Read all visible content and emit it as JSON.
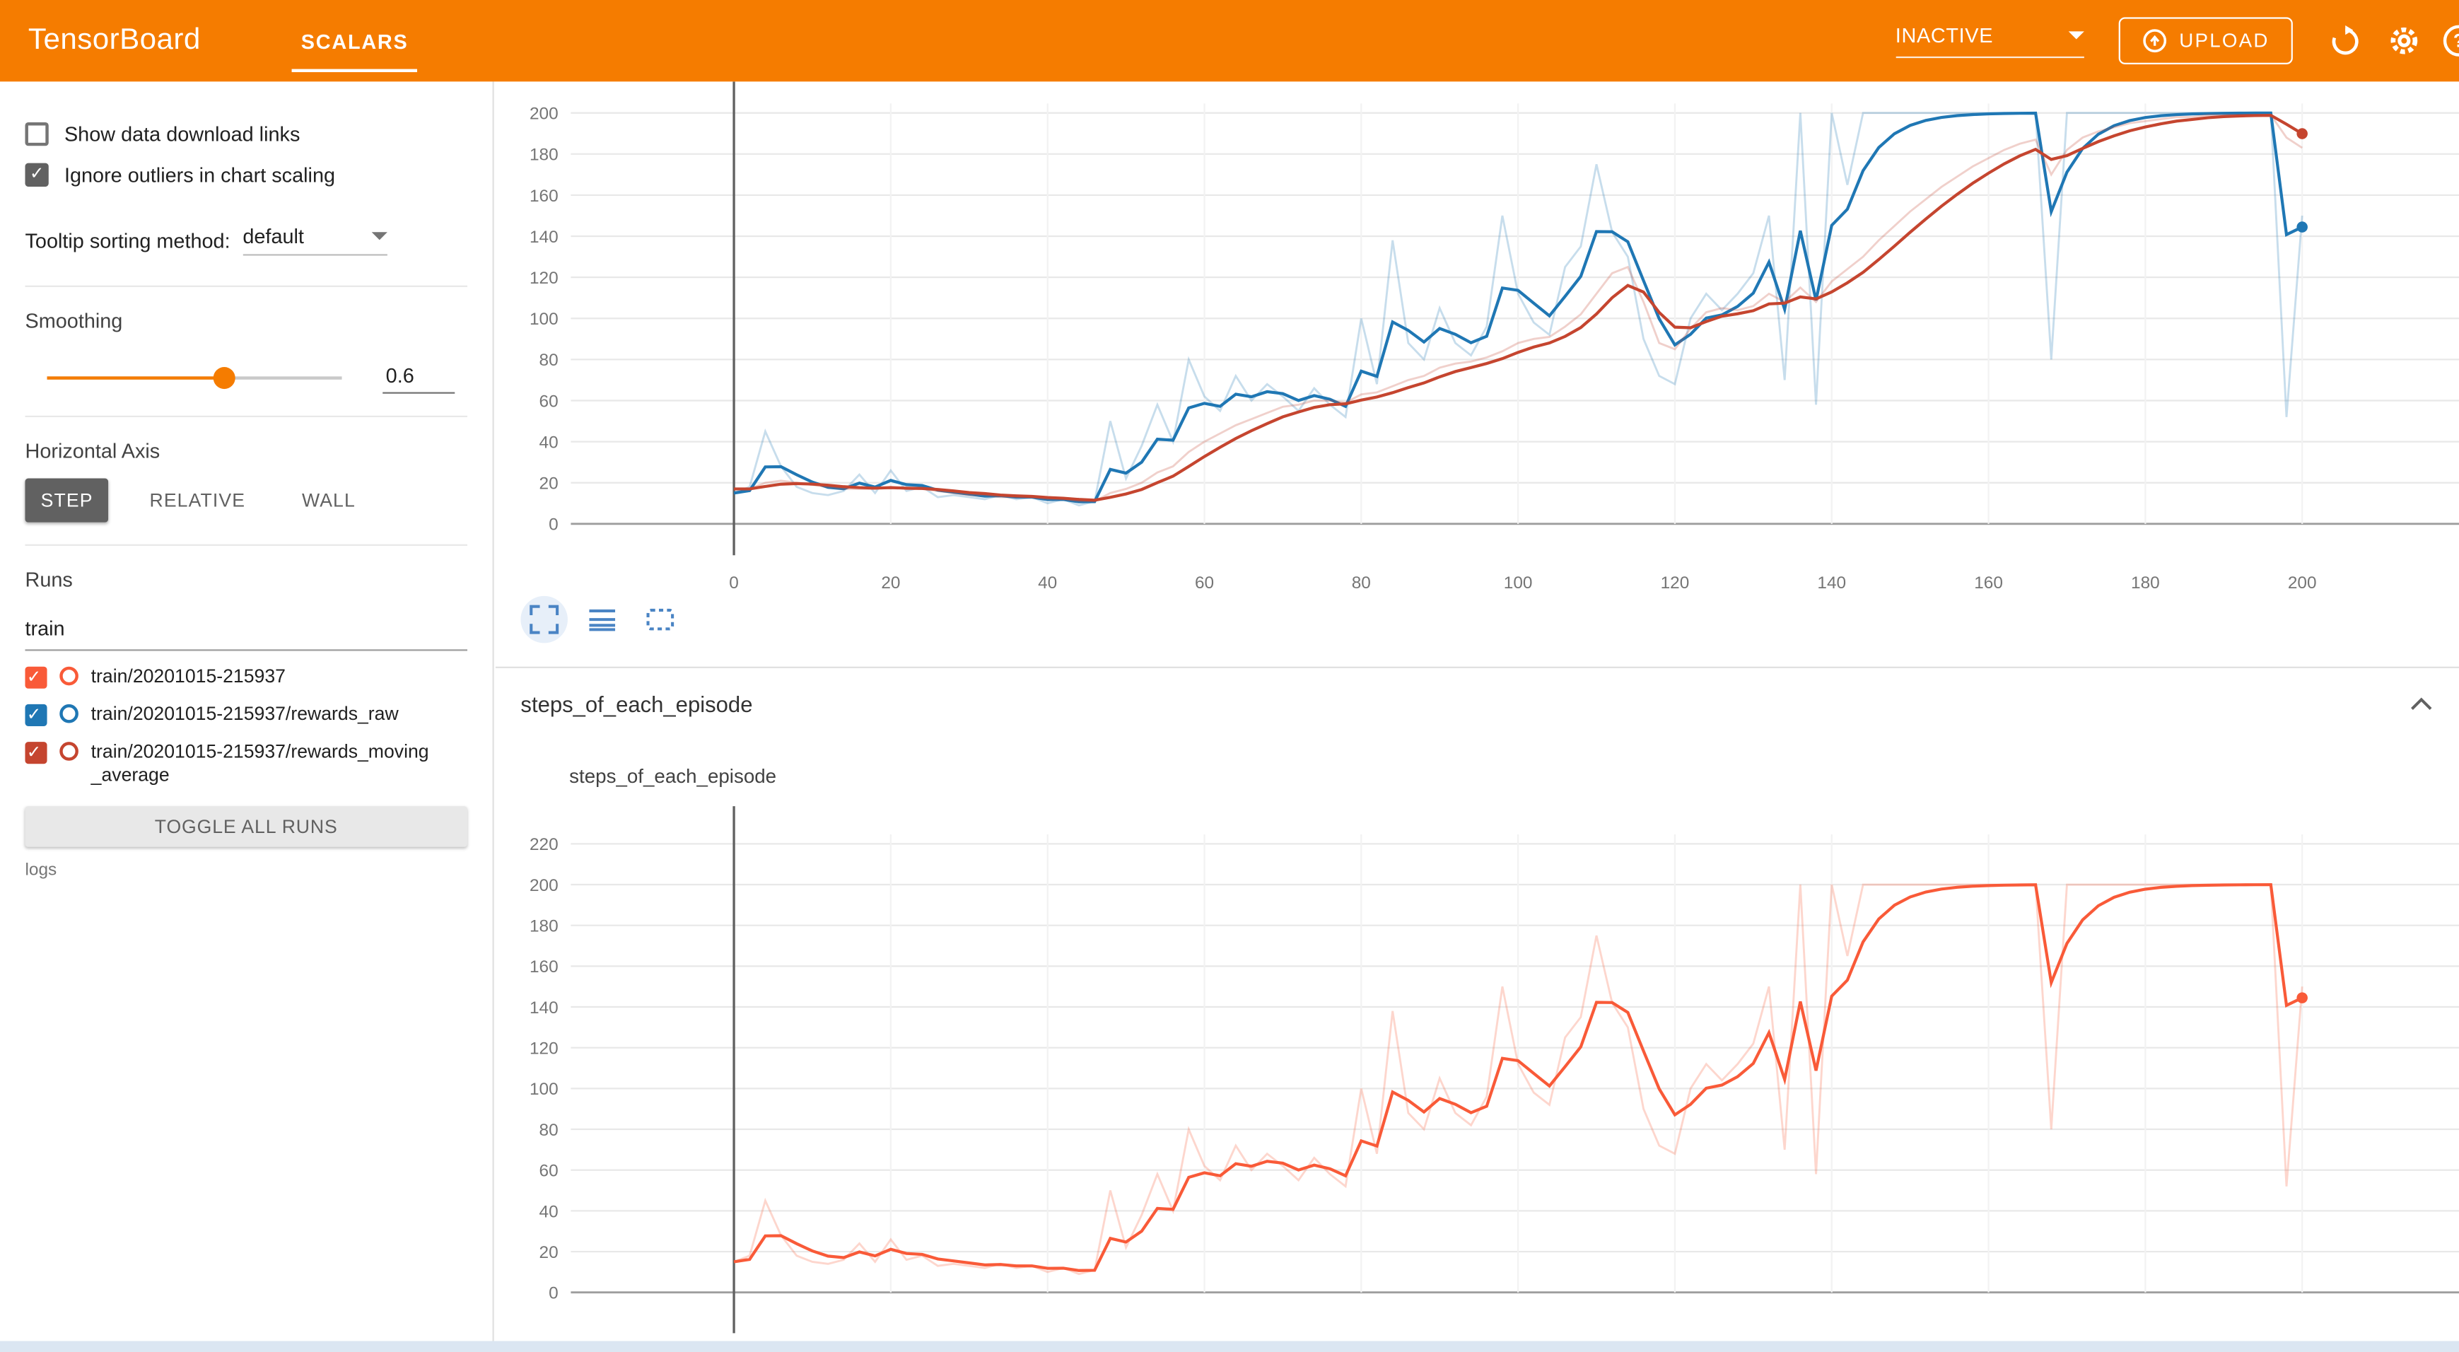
{
  "header": {
    "brand": "TensorBoard",
    "tabs": [
      {
        "label": "SCALARS",
        "active": true
      }
    ],
    "status_dropdown": {
      "value": "INACTIVE"
    },
    "upload_button": {
      "label": "UPLOAD"
    },
    "accent_color": "#f57c00"
  },
  "sidebar": {
    "checkboxes": [
      {
        "label": "Show data download links",
        "checked": false
      },
      {
        "label": "Ignore outliers in chart scaling",
        "checked": true
      }
    ],
    "tooltip_sorting": {
      "label": "Tooltip sorting method:",
      "value": "default"
    },
    "smoothing": {
      "label": "Smoothing",
      "value": "0.6"
    },
    "horizontal_axis": {
      "label": "Horizontal Axis",
      "options": [
        "STEP",
        "RELATIVE",
        "WALL"
      ],
      "selected": "STEP"
    },
    "runs": {
      "label": "Runs",
      "filter_value": "train",
      "items": [
        {
          "label": "train/20201015-215937",
          "color": "#f95a38",
          "checked": true
        },
        {
          "label": "train/20201015-215937/rewards_raw",
          "color": "#1f77b4",
          "checked": true
        },
        {
          "label": "train/20201015-215937/rewards_moving_average",
          "color": "#c5452f",
          "checked": true
        }
      ],
      "toggle_all_label": "TOGGLE ALL RUNS",
      "logdir": "logs"
    }
  },
  "main": {
    "section": {
      "title": "steps_of_each_episode"
    },
    "card": {
      "title": "steps_of_each_episode"
    }
  },
  "chart_data": [
    {
      "type": "line",
      "note": "top chart, card header cropped out of view",
      "smoothing": 0.6,
      "xlim": [
        0,
        200
      ],
      "ylim_visible": [
        0,
        200
      ],
      "xticks": [
        0,
        20,
        40,
        60,
        80,
        100,
        120,
        140,
        160,
        180,
        200
      ],
      "yticks": [
        0,
        20,
        40,
        60,
        80,
        100,
        120,
        140,
        160,
        180,
        200
      ],
      "grid": true,
      "series": [
        {
          "name": "train/20201015-215937/rewards_raw",
          "color": "#1f77b4",
          "x_step": 2,
          "values": [
            15,
            18,
            45,
            28,
            18,
            15,
            14,
            16,
            24,
            15,
            26,
            16,
            18,
            13,
            14,
            13,
            12,
            14,
            12,
            13,
            10,
            12,
            9,
            11,
            50,
            22,
            38,
            58,
            40,
            80,
            62,
            55,
            72,
            60,
            68,
            62,
            55,
            66,
            58,
            52,
            100,
            68,
            138,
            88,
            80,
            105,
            88,
            82,
            96,
            150,
            112,
            98,
            92,
            125,
            135,
            175,
            142,
            130,
            90,
            72,
            68,
            100,
            112,
            104,
            112,
            122,
            150,
            70,
            200,
            58,
            200,
            165,
            200,
            200,
            200,
            200,
            200,
            200,
            200,
            200,
            200,
            200,
            200,
            200,
            80,
            200,
            200,
            200,
            200,
            200,
            200,
            200,
            200,
            200,
            200,
            200,
            200,
            200,
            200,
            52,
            150
          ]
        },
        {
          "name": "train/20201015-215937/rewards_moving_average",
          "color": "#c5452f",
          "x_step": 2,
          "values": [
            17,
            17,
            20,
            21,
            20,
            19,
            18,
            17,
            17,
            17,
            18,
            17,
            17,
            16,
            15,
            14,
            14,
            13,
            13,
            13,
            12,
            12,
            11,
            11,
            15,
            17,
            20,
            25,
            28,
            35,
            40,
            44,
            48,
            51,
            54,
            57,
            58,
            60,
            60,
            59,
            63,
            64,
            67,
            70,
            72,
            76,
            78,
            79,
            81,
            84,
            88,
            90,
            91,
            96,
            102,
            112,
            122,
            125,
            108,
            88,
            85,
            95,
            103,
            105,
            104,
            106,
            112,
            108,
            115,
            108,
            118,
            124,
            130,
            138,
            145,
            152,
            158,
            164,
            169,
            174,
            178,
            182,
            185,
            187,
            170,
            182,
            188,
            191,
            193,
            195,
            196,
            197,
            198,
            198,
            199,
            199,
            199,
            199,
            199,
            188,
            183
          ]
        }
      ]
    },
    {
      "type": "line",
      "title": "steps_of_each_episode",
      "smoothing": 0.6,
      "xlim": [
        0,
        200
      ],
      "ylim_visible": [
        0,
        220
      ],
      "xticks": [
        0,
        20,
        40,
        60,
        80,
        100,
        120,
        140,
        160,
        180,
        200
      ],
      "yticks": [
        0,
        20,
        40,
        60,
        80,
        100,
        120,
        140,
        160,
        180,
        200,
        220
      ],
      "grid": true,
      "x_axis_labels_visible": false,
      "series": [
        {
          "name": "train/20201015-215937",
          "color": "#f95a38",
          "x_step": 2,
          "values": [
            15,
            18,
            45,
            28,
            18,
            15,
            14,
            16,
            24,
            15,
            26,
            16,
            18,
            13,
            14,
            13,
            12,
            14,
            12,
            13,
            10,
            12,
            9,
            11,
            50,
            22,
            38,
            58,
            40,
            80,
            62,
            55,
            72,
            60,
            68,
            62,
            55,
            66,
            58,
            52,
            100,
            68,
            138,
            88,
            80,
            105,
            88,
            82,
            96,
            150,
            112,
            98,
            92,
            125,
            135,
            175,
            142,
            130,
            90,
            72,
            68,
            100,
            112,
            104,
            112,
            122,
            150,
            70,
            200,
            58,
            200,
            165,
            200,
            200,
            200,
            200,
            200,
            200,
            200,
            200,
            200,
            200,
            200,
            200,
            80,
            200,
            200,
            200,
            200,
            200,
            200,
            200,
            200,
            200,
            200,
            200,
            200,
            200,
            200,
            52,
            150
          ]
        }
      ]
    }
  ]
}
